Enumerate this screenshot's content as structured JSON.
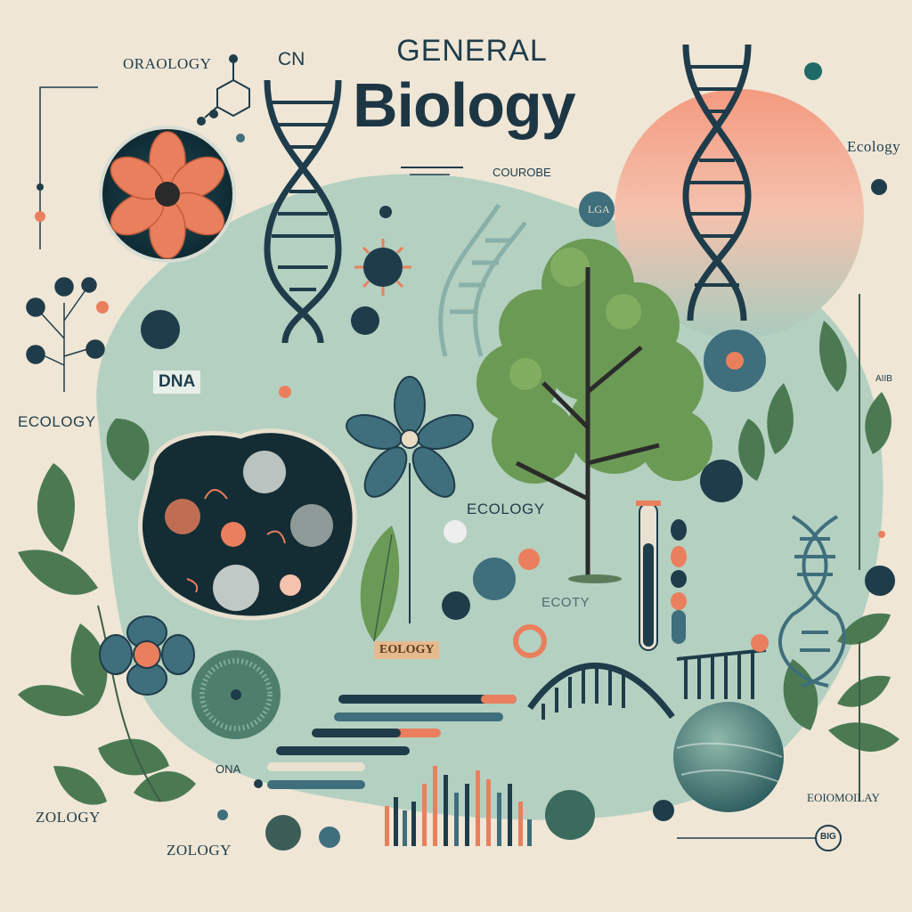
{
  "header": {
    "title_top": "GENERAL",
    "title_main": "Biology",
    "subtitle": "COUROBE"
  },
  "labels": {
    "top_left": "ORAOLOGY",
    "top_cn": "CN",
    "ecology_right": "Ecology",
    "ecology_left": "ECOLOGY",
    "dna_badge": "DNA",
    "ecology_center": "ECOLOGY",
    "ecoty": "ECOTY",
    "ecology_badge": "EOLOGY",
    "zology_left": "ZOLOGY",
    "zology_bottom": "ZOLOGY",
    "ona": "ONA",
    "bottom_right": "EOIOMOILAY",
    "bio_badge": "BIG",
    "lga_badge": "LGA",
    "tiny_right": "AIIB"
  },
  "colors": {
    "background": "#efe6d6",
    "mint": "#9cc3b6",
    "teal_dark": "#1f4a55",
    "coral": "#f08e6a",
    "leaf": "#5b8f4e"
  }
}
